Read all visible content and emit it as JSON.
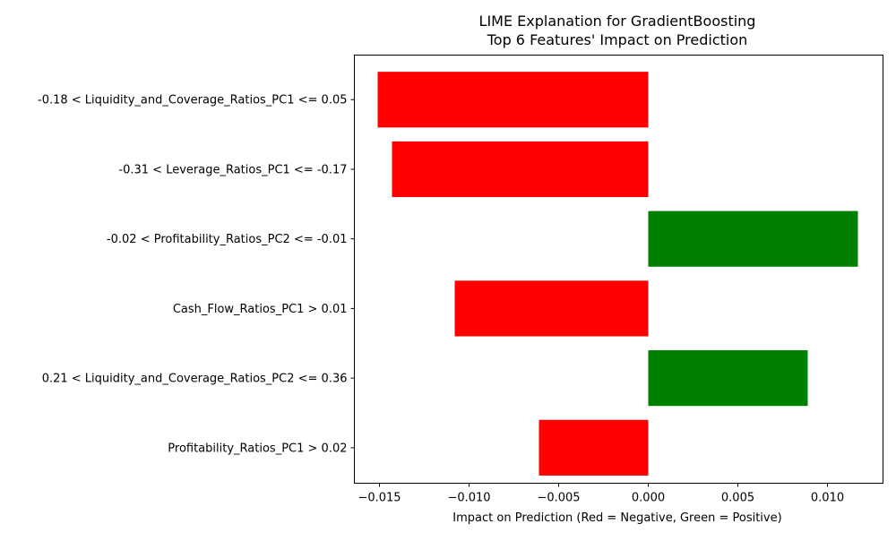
{
  "chart_data": {
    "type": "bar",
    "orientation": "horizontal",
    "title_line1": "LIME Explanation for GradientBoosting",
    "title_line2": "Top 6 Features' Impact on Prediction",
    "xlabel": "Impact on Prediction (Red = Negative, Green = Positive)",
    "ylabel": "",
    "xlim": [
      -0.0164,
      0.0131
    ],
    "x_ticks": [
      -0.015,
      -0.01,
      -0.005,
      0.0,
      0.005,
      0.01
    ],
    "x_tick_labels": [
      "−0.015",
      "−0.010",
      "−0.005",
      "0.000",
      "0.005",
      "0.010"
    ],
    "grid": false,
    "categories": [
      "-0.18 < Liquidity_and_Coverage_Ratios_PC1 <= 0.05",
      "-0.31 < Leverage_Ratios_PC1 <= -0.17",
      "-0.02 < Profitability_Ratios_PC2 <= -0.01",
      "Cash_Flow_Ratios_PC1 > 0.01",
      "0.21 < Liquidity_and_Coverage_Ratios_PC2 <= 0.36",
      "Profitability_Ratios_PC1 > 0.02"
    ],
    "values": [
      -0.0151,
      -0.0143,
      0.0117,
      -0.0108,
      0.0089,
      -0.0061
    ],
    "colors": {
      "negative": "#ff0000",
      "positive": "#008000"
    }
  }
}
